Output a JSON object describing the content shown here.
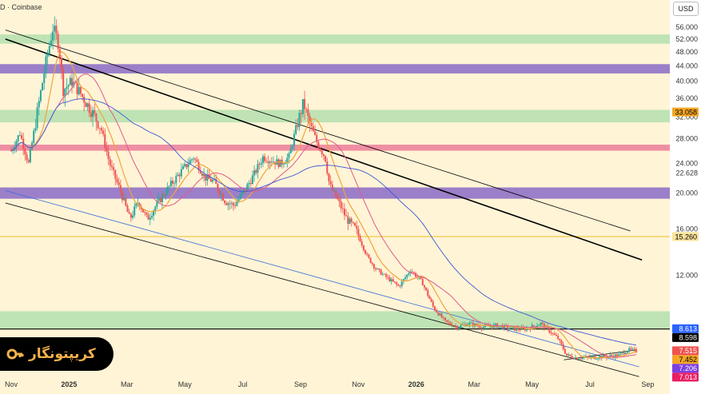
{
  "header": {
    "source": "D · Coinbase",
    "currency": "USD"
  },
  "brand": {
    "wordmark": "کریپتونگار",
    "logo_icon": "key-icon",
    "logo_color": "#f3b24a"
  },
  "chart_data": {
    "type": "candlestick",
    "title": "",
    "scale": "log",
    "ylim": [
      6.6,
      60
    ],
    "y_ticks": [
      {
        "v": 56,
        "label": "56.000"
      },
      {
        "v": 52,
        "label": "52.000"
      },
      {
        "v": 48,
        "label": "48.000"
      },
      {
        "v": 44,
        "label": "44.000"
      },
      {
        "v": 40,
        "label": "40.000"
      },
      {
        "v": 36,
        "label": "36.000"
      },
      {
        "v": 32,
        "label": "32.000"
      },
      {
        "v": 28,
        "label": "28.000"
      },
      {
        "v": 24,
        "label": "24.000"
      },
      {
        "v": 22.628,
        "label": "22.628"
      },
      {
        "v": 20,
        "label": "20.000"
      },
      {
        "v": 16,
        "label": "16.000"
      },
      {
        "v": 12,
        "label": "12.000"
      }
    ],
    "x_ticks": [
      {
        "t": 0.0,
        "label": "Nov"
      },
      {
        "t": 2.0,
        "label": "2025",
        "bold": true
      },
      {
        "t": 4.0,
        "label": "Mar"
      },
      {
        "t": 6.0,
        "label": "May"
      },
      {
        "t": 8.0,
        "label": "Jul"
      },
      {
        "t": 10.0,
        "label": "Sep"
      },
      {
        "t": 12.0,
        "label": "Nov"
      },
      {
        "t": 14.0,
        "label": "2026",
        "bold": true
      },
      {
        "t": 16.0,
        "label": "Mar"
      },
      {
        "t": 18.0,
        "label": "May"
      },
      {
        "t": 20.0,
        "label": "Jul"
      },
      {
        "t": 22.0,
        "label": "Sep"
      }
    ],
    "price_labels": [
      {
        "v": 33.058,
        "label": "33.058",
        "color": "#f5a623",
        "text": "#000"
      },
      {
        "v": 15.26,
        "label": "15.260",
        "color": "#fbe39a",
        "text": "#000"
      },
      {
        "v": 8.613,
        "label": "8.613",
        "color": "#2962ff",
        "text": "#fff"
      },
      {
        "v": 8.598,
        "label": "8.598",
        "color": "#000000",
        "text": "#fff"
      },
      {
        "v": 7.515,
        "label": "7.515",
        "color": "#ef5350",
        "text": "#fff"
      },
      {
        "v": 7.452,
        "label": "7.452",
        "color": "#f5a623",
        "text": "#000"
      },
      {
        "v": 7.206,
        "label": "7.206",
        "color": "#7b3fe4",
        "text": "#fff"
      },
      {
        "v": 7.013,
        "label": "7.013",
        "color": "#e91e63",
        "text": "#fff"
      }
    ],
    "zones": [
      {
        "low": 50.5,
        "high": 53.5,
        "color": "#bfe3b4"
      },
      {
        "low": 42.0,
        "high": 44.5,
        "color": "#9b7fc9"
      },
      {
        "low": 31.0,
        "high": 33.5,
        "color": "#bfe3b4"
      },
      {
        "low": 26.0,
        "high": 27.0,
        "color": "#ef8fa3"
      },
      {
        "low": 19.3,
        "high": 20.7,
        "color": "#9b7fc9"
      },
      {
        "low": 8.6,
        "high": 9.6,
        "color": "#bfe3b4"
      }
    ],
    "hlines": [
      {
        "v": 15.26,
        "color": "#f2c94c",
        "width": 1.2
      },
      {
        "v": 8.598,
        "color": "#000000",
        "width": 1.2
      }
    ],
    "trendlines": [
      {
        "t1": -0.2,
        "v1": 52.0,
        "t2": 21.8,
        "v2": 13.2,
        "color": "#000",
        "width": 1.6
      },
      {
        "t1": -0.2,
        "v1": 55.0,
        "t2": 21.4,
        "v2": 15.8,
        "color": "#000",
        "width": 0.8
      },
      {
        "t1": -0.2,
        "v1": 18.8,
        "t2": 21.7,
        "v2": 6.4,
        "color": "#000",
        "width": 0.8
      },
      {
        "t1": -0.2,
        "v1": 20.3,
        "t2": 21.7,
        "v2": 6.8,
        "color": "#3b6fd6",
        "width": 0.8
      },
      {
        "t1": 19.1,
        "v1": 7.1,
        "t2": 21.6,
        "v2": 7.55,
        "color": "#000",
        "width": 0.8
      }
    ],
    "anchors": [
      [
        0.0,
        26
      ],
      [
        0.3,
        29
      ],
      [
        0.6,
        24
      ],
      [
        0.9,
        33
      ],
      [
        1.2,
        45
      ],
      [
        1.45,
        56
      ],
      [
        1.65,
        50
      ],
      [
        1.8,
        38
      ],
      [
        2.1,
        40
      ],
      [
        2.4,
        37
      ],
      [
        2.8,
        33
      ],
      [
        3.1,
        30
      ],
      [
        3.4,
        24
      ],
      [
        3.8,
        20
      ],
      [
        4.1,
        17
      ],
      [
        4.4,
        19
      ],
      [
        4.7,
        17
      ],
      [
        5.1,
        19
      ],
      [
        5.5,
        21
      ],
      [
        5.9,
        23
      ],
      [
        6.3,
        25
      ],
      [
        6.7,
        22
      ],
      [
        7.0,
        21.5
      ],
      [
        7.4,
        19
      ],
      [
        7.7,
        18.5
      ],
      [
        8.1,
        20.5
      ],
      [
        8.4,
        22.5
      ],
      [
        8.7,
        25
      ],
      [
        9.0,
        24.5
      ],
      [
        9.3,
        24
      ],
      [
        9.6,
        25
      ],
      [
        9.85,
        30
      ],
      [
        10.1,
        35
      ],
      [
        10.3,
        31
      ],
      [
        10.6,
        27
      ],
      [
        10.85,
        25
      ],
      [
        11.0,
        21
      ],
      [
        11.3,
        19
      ],
      [
        11.6,
        17
      ],
      [
        11.9,
        16
      ],
      [
        12.3,
        13.5
      ],
      [
        12.6,
        12.5
      ],
      [
        13.0,
        11.8
      ],
      [
        13.4,
        11.2
      ],
      [
        13.8,
        12.4
      ],
      [
        14.2,
        11.5
      ],
      [
        14.6,
        9.8
      ],
      [
        15.0,
        9.0
      ],
      [
        15.4,
        8.7
      ],
      [
        15.8,
        8.9
      ],
      [
        16.3,
        8.7
      ],
      [
        16.8,
        8.8
      ],
      [
        17.3,
        8.6
      ],
      [
        17.8,
        8.6
      ],
      [
        18.3,
        8.9
      ],
      [
        18.6,
        8.5
      ],
      [
        18.9,
        8.1
      ],
      [
        19.2,
        7.3
      ],
      [
        19.5,
        7.2
      ],
      [
        20.0,
        7.2
      ],
      [
        20.5,
        7.25
      ],
      [
        21.0,
        7.3
      ],
      [
        21.3,
        7.55
      ],
      [
        21.6,
        7.5
      ]
    ],
    "ma_lines": [
      {
        "window": 3,
        "color": "#f2a43a",
        "width": 1.2
      },
      {
        "window": 7,
        "color": "#e05a8a",
        "width": 1.0
      },
      {
        "window": 18,
        "color": "#3f57d6",
        "width": 0.9
      }
    ]
  }
}
